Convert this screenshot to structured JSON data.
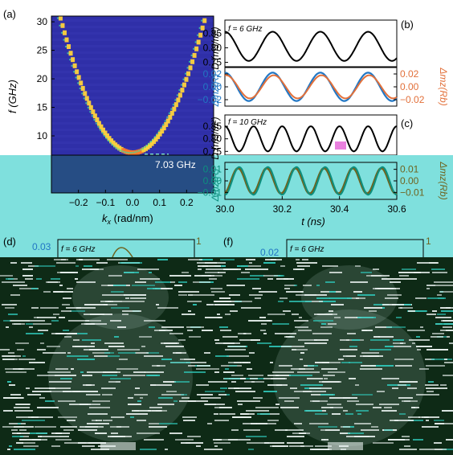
{
  "colors": {
    "cyan_overlay": "#7fe0dd",
    "dark_bg": "#0e2a16",
    "heatmap_bg": "#2f2fa8",
    "dispersion": "#ffd23c",
    "black": "#000000",
    "blue": "#2277c4",
    "orange": "#e2703a",
    "olive": "#8a7a26",
    "teal": "#0d8f7f"
  },
  "chart_data": [
    {
      "id": "a",
      "type": "heatmap",
      "panel_label": "(a)",
      "xlabel_main": "k",
      "xlabel_sub": "x",
      "xlabel_unit": " (rad/nm)",
      "ylabel": "f (GHz)",
      "xlim": [
        -0.3,
        0.3
      ],
      "ylim": [
        0,
        31
      ],
      "xticks": [
        -0.2,
        -0.1,
        0.0,
        0.1,
        0.2
      ],
      "xtick_labels": [
        "−0.2",
        "−0.1",
        "0.0",
        "0.1",
        "0.2"
      ],
      "yticks": [
        5,
        10,
        15,
        20,
        25,
        30
      ],
      "ytick_labels": [
        "5",
        "10",
        "15",
        "20",
        "25",
        "30"
      ],
      "annotation": "7.03 GHz",
      "gap_frequency_ghz": 7.03,
      "dispersion_curvature": 330
    },
    {
      "id": "b-top",
      "type": "line",
      "panel_label": "(b)",
      "annotation": "f = 6 GHz",
      "ylabel": "D (mJ/m²)",
      "ylim": [
        0.735,
        0.895
      ],
      "yticks": [
        0.75,
        0.8,
        0.85
      ],
      "ytick_labels": [
        "0.75",
        "0.80",
        "0.85"
      ],
      "series": [
        {
          "color": "#000000",
          "mean": 0.805,
          "amplitude": 0.05,
          "frequency_ghz": 6
        }
      ]
    },
    {
      "id": "b-bottom",
      "type": "line",
      "ylabel_left": "Δmz(R)",
      "ylabel_right": "Δmz(Rb)",
      "ylim_left": [
        -0.03,
        0.03
      ],
      "yticks_left": [
        0.02,
        0.0,
        -0.02
      ],
      "ytick_labels_left": [
        "0.02",
        "0.00",
        "−0.02"
      ],
      "ytick_labels_right": [
        "0.02",
        "0.00",
        "−0.02"
      ],
      "series": [
        {
          "color": "#2277c4",
          "amplitude": 0.022,
          "frequency_ghz": 6
        },
        {
          "color": "#e2703a",
          "amplitude": 0.018,
          "frequency_ghz": 6
        }
      ]
    },
    {
      "id": "c-top",
      "type": "line",
      "panel_label": "(c)",
      "annotation": "f = 10 GHz",
      "ylabel": "D (mJ/m²)",
      "ylim": [
        0.735,
        0.895
      ],
      "yticks": [
        0.75,
        0.8,
        0.85
      ],
      "ytick_labels": [
        "0.75",
        "0.80",
        "0.85"
      ],
      "series": [
        {
          "color": "#000000",
          "mean": 0.8,
          "amplitude": 0.05,
          "frequency_ghz": 10
        }
      ]
    },
    {
      "id": "c-bottom",
      "type": "line",
      "xlabel": "t (ns)",
      "xlim": [
        30.0,
        30.6
      ],
      "xticks": [
        30.0,
        30.2,
        30.4,
        30.6
      ],
      "xtick_labels": [
        "30.0",
        "30.2",
        "30.4",
        "30.6"
      ],
      "ylabel_left": "Δmz(R)",
      "ylabel_right": "Δmz(Rb)",
      "ylim_left": [
        -0.016,
        0.016
      ],
      "yticks_left": [
        0.01,
        0.0,
        -0.01
      ],
      "ytick_labels_left": [
        "0.01",
        "0.00",
        "−0.01"
      ],
      "ytick_labels_right": [
        "0.01",
        "0.00",
        "−0.01"
      ],
      "series": [
        {
          "color": "#0d8f7f",
          "amplitude": 0.012,
          "frequency_ghz": 10
        },
        {
          "color": "#8a7a26",
          "amplitude": 0.011,
          "frequency_ghz": 10
        }
      ]
    }
  ],
  "lower_panels": {
    "d": {
      "panel_label": "(d)",
      "ytick_left": "0.03",
      "ytick_right": "1",
      "annotation": "f = 6 GHz"
    },
    "f": {
      "panel_label": "(f)",
      "ytick_left": "0.02",
      "ytick_right": "1",
      "annotation": "f = 6 GHz"
    }
  }
}
